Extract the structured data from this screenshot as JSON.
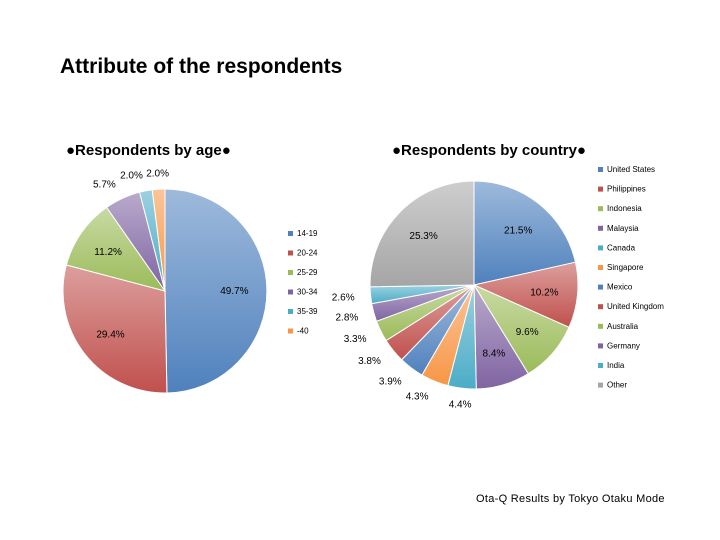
{
  "title": "Attribute of the respondents",
  "footer": "Ota-Q Results by Tokyo Otaku Mode",
  "chart_data": [
    {
      "type": "pie",
      "title": "●Respondents by age●",
      "legend_position": "right",
      "categories": [
        "14-19",
        "20-24",
        "25-29",
        "30-34",
        "35-39",
        "-40"
      ],
      "values": [
        49.7,
        29.4,
        11.2,
        5.7,
        2.0,
        2.0
      ],
      "labels": [
        "49.7%",
        "29.4%",
        "11.2%",
        "5.7%",
        "2.0%",
        "2.0%"
      ],
      "colors": [
        "#4f81bd",
        "#c0504d",
        "#9bbb59",
        "#8064a2",
        "#4bacc6",
        "#f79646"
      ]
    },
    {
      "type": "pie",
      "title": "●Respondents by country●",
      "legend_position": "right",
      "categories": [
        "United States",
        "Philippines",
        "Indonesia",
        "Malaysia",
        "Canada",
        "Singapore",
        "Mexico",
        "United Kingdom",
        "Australia",
        "Germany",
        "India",
        "Other"
      ],
      "values": [
        21.5,
        10.2,
        9.6,
        8.4,
        4.4,
        4.3,
        3.9,
        3.8,
        3.3,
        2.8,
        2.6,
        25.3
      ],
      "labels": [
        "21.5%",
        "10.2%",
        "9.6%",
        "8.4%",
        "4.4%",
        "4.3%",
        "3.9%",
        "3.8%",
        "3.3%",
        "2.8%",
        "2.6%",
        "25.3%"
      ],
      "colors": [
        "#4f81bd",
        "#c0504d",
        "#9bbb59",
        "#8064a2",
        "#4bacc6",
        "#f79646",
        "#4f81bd",
        "#c0504d",
        "#9bbb59",
        "#8064a2",
        "#4bacc6",
        "#a5a5a5"
      ]
    }
  ]
}
